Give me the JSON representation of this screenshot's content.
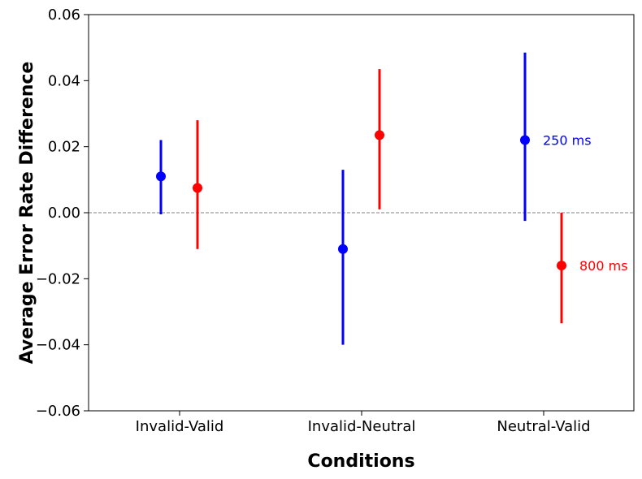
{
  "chart_data": {
    "type": "scatter",
    "xlabel": "Conditions",
    "ylabel": "Average Error Rate Difference",
    "categories": [
      "Invalid-Valid",
      "Invalid-Neutral",
      "Neutral-Valid"
    ],
    "ylim": [
      -0.06,
      0.06
    ],
    "yticks": [
      "−0.06",
      "−0.04",
      "−0.02",
      "0.00",
      "0.02",
      "0.04",
      "0.06"
    ],
    "ytick_values": [
      -0.06,
      -0.04,
      -0.02,
      0.0,
      0.02,
      0.04,
      0.06
    ],
    "reference_line": 0.0,
    "grid": false,
    "series": [
      {
        "name": "250 ms",
        "color": "#0000ff",
        "values": [
          0.011,
          -0.011,
          0.022
        ],
        "ci_low": [
          -0.0005,
          -0.04,
          -0.0025
        ],
        "ci_high": [
          0.022,
          0.013,
          0.0485
        ]
      },
      {
        "name": "800 ms",
        "color": "#ff0000",
        "values": [
          0.0075,
          0.0235,
          -0.016
        ],
        "ci_low": [
          -0.011,
          0.001,
          -0.0335
        ],
        "ci_high": [
          0.028,
          0.0435,
          0.0
        ]
      }
    ]
  }
}
